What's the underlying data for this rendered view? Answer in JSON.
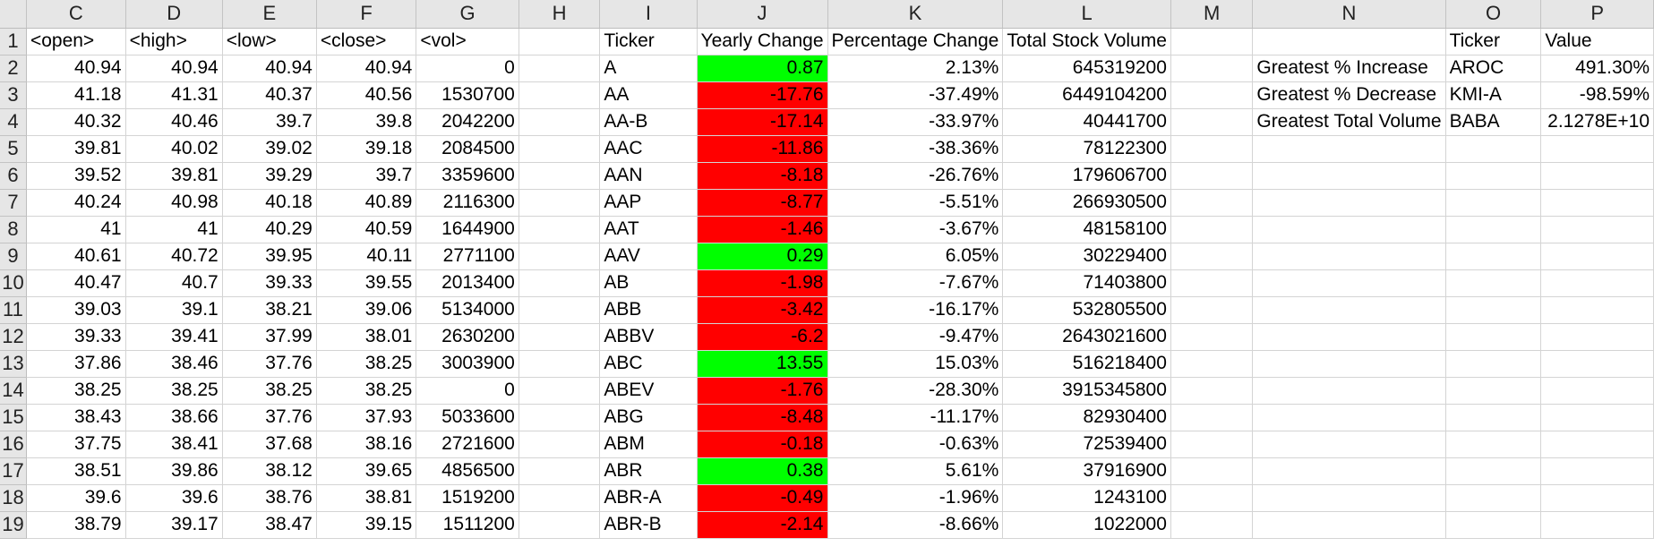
{
  "columns": [
    "C",
    "D",
    "E",
    "F",
    "G",
    "H",
    "I",
    "J",
    "K",
    "L",
    "M",
    "N",
    "O",
    "P"
  ],
  "header_row": {
    "num": "1",
    "open": "<open>",
    "high": "<high>",
    "low": "<low>",
    "close": "<close>",
    "vol": "<vol>",
    "ticker": "Ticker",
    "yearly_change": "Yearly Change",
    "percentage_change": "Percentage Change",
    "total_volume": "Total Stock Volume",
    "summary_ticker": "Ticker",
    "summary_value": "Value"
  },
  "rows": [
    {
      "num": "2",
      "open": "40.94",
      "high": "40.94",
      "low": "40.94",
      "close": "40.94",
      "vol": "0",
      "ticker": "A",
      "yearly_change": "0.87",
      "change_status": "positive",
      "percentage_change": "2.13%",
      "total_volume": "645319200",
      "summary_label": "Greatest % Increase",
      "summary_ticker": "AROC",
      "summary_value": "491.30%"
    },
    {
      "num": "3",
      "open": "41.18",
      "high": "41.31",
      "low": "40.37",
      "close": "40.56",
      "vol": "1530700",
      "ticker": "AA",
      "yearly_change": "-17.76",
      "change_status": "negative",
      "percentage_change": "-37.49%",
      "total_volume": "6449104200",
      "summary_label": "Greatest % Decrease",
      "summary_ticker": "KMI-A",
      "summary_value": "-98.59%"
    },
    {
      "num": "4",
      "open": "40.32",
      "high": "40.46",
      "low": "39.7",
      "close": "39.8",
      "vol": "2042200",
      "ticker": "AA-B",
      "yearly_change": "-17.14",
      "change_status": "negative",
      "percentage_change": "-33.97%",
      "total_volume": "40441700",
      "summary_label": "Greatest Total Volume",
      "summary_ticker": "BABA",
      "summary_value": "2.1278E+10"
    },
    {
      "num": "5",
      "open": "39.81",
      "high": "40.02",
      "low": "39.02",
      "close": "39.18",
      "vol": "2084500",
      "ticker": "AAC",
      "yearly_change": "-11.86",
      "change_status": "negative",
      "percentage_change": "-38.36%",
      "total_volume": "78122300",
      "summary_label": "",
      "summary_ticker": "",
      "summary_value": ""
    },
    {
      "num": "6",
      "open": "39.52",
      "high": "39.81",
      "low": "39.29",
      "close": "39.7",
      "vol": "3359600",
      "ticker": "AAN",
      "yearly_change": "-8.18",
      "change_status": "negative",
      "percentage_change": "-26.76%",
      "total_volume": "179606700",
      "summary_label": "",
      "summary_ticker": "",
      "summary_value": ""
    },
    {
      "num": "7",
      "open": "40.24",
      "high": "40.98",
      "low": "40.18",
      "close": "40.89",
      "vol": "2116300",
      "ticker": "AAP",
      "yearly_change": "-8.77",
      "change_status": "negative",
      "percentage_change": "-5.51%",
      "total_volume": "266930500",
      "summary_label": "",
      "summary_ticker": "",
      "summary_value": ""
    },
    {
      "num": "8",
      "open": "41",
      "high": "41",
      "low": "40.29",
      "close": "40.59",
      "vol": "1644900",
      "ticker": "AAT",
      "yearly_change": "-1.46",
      "change_status": "negative",
      "percentage_change": "-3.67%",
      "total_volume": "48158100",
      "summary_label": "",
      "summary_ticker": "",
      "summary_value": ""
    },
    {
      "num": "9",
      "open": "40.61",
      "high": "40.72",
      "low": "39.95",
      "close": "40.11",
      "vol": "2771100",
      "ticker": "AAV",
      "yearly_change": "0.29",
      "change_status": "positive",
      "percentage_change": "6.05%",
      "total_volume": "30229400",
      "summary_label": "",
      "summary_ticker": "",
      "summary_value": ""
    },
    {
      "num": "10",
      "open": "40.47",
      "high": "40.7",
      "low": "39.33",
      "close": "39.55",
      "vol": "2013400",
      "ticker": "AB",
      "yearly_change": "-1.98",
      "change_status": "negative",
      "percentage_change": "-7.67%",
      "total_volume": "71403800",
      "summary_label": "",
      "summary_ticker": "",
      "summary_value": ""
    },
    {
      "num": "11",
      "open": "39.03",
      "high": "39.1",
      "low": "38.21",
      "close": "39.06",
      "vol": "5134000",
      "ticker": "ABB",
      "yearly_change": "-3.42",
      "change_status": "negative",
      "percentage_change": "-16.17%",
      "total_volume": "532805500",
      "summary_label": "",
      "summary_ticker": "",
      "summary_value": ""
    },
    {
      "num": "12",
      "open": "39.33",
      "high": "39.41",
      "low": "37.99",
      "close": "38.01",
      "vol": "2630200",
      "ticker": "ABBV",
      "yearly_change": "-6.2",
      "change_status": "negative",
      "percentage_change": "-9.47%",
      "total_volume": "2643021600",
      "summary_label": "",
      "summary_ticker": "",
      "summary_value": ""
    },
    {
      "num": "13",
      "open": "37.86",
      "high": "38.46",
      "low": "37.76",
      "close": "38.25",
      "vol": "3003900",
      "ticker": "ABC",
      "yearly_change": "13.55",
      "change_status": "positive",
      "percentage_change": "15.03%",
      "total_volume": "516218400",
      "summary_label": "",
      "summary_ticker": "",
      "summary_value": ""
    },
    {
      "num": "14",
      "open": "38.25",
      "high": "38.25",
      "low": "38.25",
      "close": "38.25",
      "vol": "0",
      "ticker": "ABEV",
      "yearly_change": "-1.76",
      "change_status": "negative",
      "percentage_change": "-28.30%",
      "total_volume": "3915345800",
      "summary_label": "",
      "summary_ticker": "",
      "summary_value": ""
    },
    {
      "num": "15",
      "open": "38.43",
      "high": "38.66",
      "low": "37.76",
      "close": "37.93",
      "vol": "5033600",
      "ticker": "ABG",
      "yearly_change": "-8.48",
      "change_status": "negative",
      "percentage_change": "-11.17%",
      "total_volume": "82930400",
      "summary_label": "",
      "summary_ticker": "",
      "summary_value": ""
    },
    {
      "num": "16",
      "open": "37.75",
      "high": "38.41",
      "low": "37.68",
      "close": "38.16",
      "vol": "2721600",
      "ticker": "ABM",
      "yearly_change": "-0.18",
      "change_status": "negative",
      "percentage_change": "-0.63%",
      "total_volume": "72539400",
      "summary_label": "",
      "summary_ticker": "",
      "summary_value": ""
    },
    {
      "num": "17",
      "open": "38.51",
      "high": "39.86",
      "low": "38.12",
      "close": "39.65",
      "vol": "4856500",
      "ticker": "ABR",
      "yearly_change": "0.38",
      "change_status": "positive",
      "percentage_change": "5.61%",
      "total_volume": "37916900",
      "summary_label": "",
      "summary_ticker": "",
      "summary_value": ""
    },
    {
      "num": "18",
      "open": "39.6",
      "high": "39.6",
      "low": "38.76",
      "close": "38.81",
      "vol": "1519200",
      "ticker": "ABR-A",
      "yearly_change": "-0.49",
      "change_status": "negative",
      "percentage_change": "-1.96%",
      "total_volume": "1243100",
      "summary_label": "",
      "summary_ticker": "",
      "summary_value": ""
    },
    {
      "num": "19",
      "open": "38.79",
      "high": "39.17",
      "low": "38.47",
      "close": "39.15",
      "vol": "1511200",
      "ticker": "ABR-B",
      "yearly_change": "-2.14",
      "change_status": "negative",
      "percentage_change": "-8.66%",
      "total_volume": "1022000",
      "summary_label": "",
      "summary_ticker": "",
      "summary_value": ""
    }
  ],
  "colors": {
    "positive_fill": "#00ff00",
    "negative_fill": "#ff0000",
    "header_gray": "#e6e6e6",
    "gridline": "#d4d4d4"
  }
}
